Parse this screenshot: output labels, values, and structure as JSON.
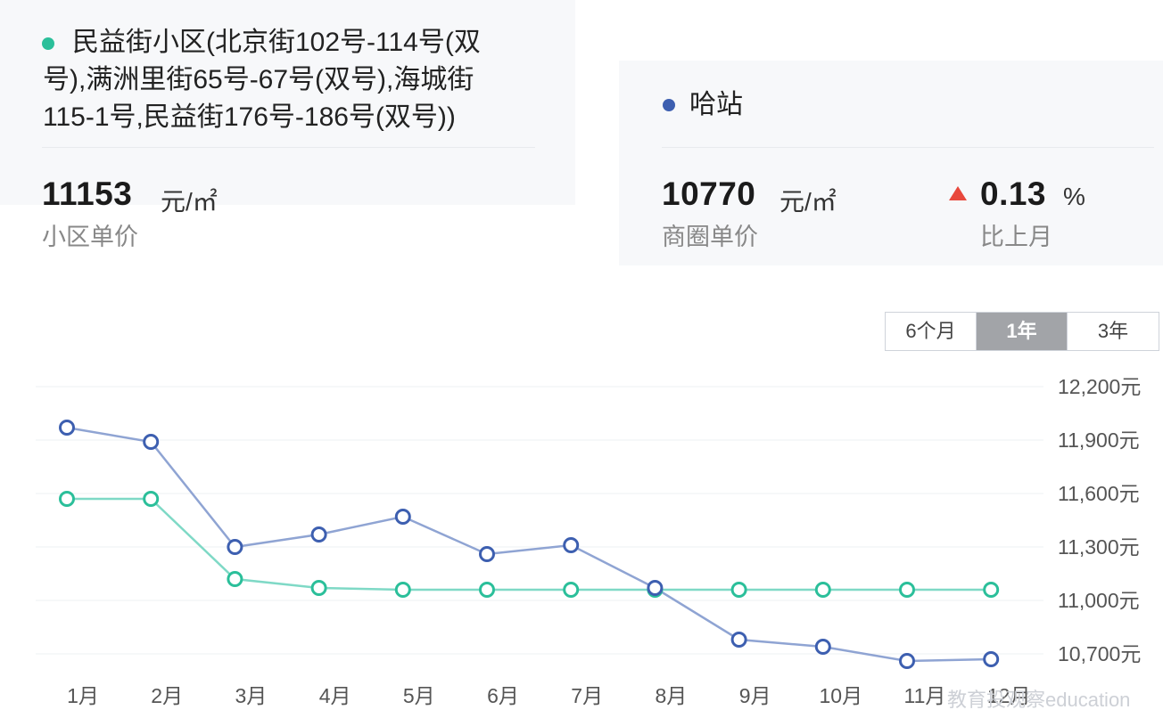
{
  "community": {
    "name": "民益街小区(北京街102号-114号(双号),满洲里街65号-67号(双号),海城街115-1号,民益街176号-186号(双号))",
    "name_lines": [
      "民益街小区(北京街102号-114号(双",
      "号),满洲里街65号-67号(双号),海城街",
      "115-1号,民益街176号-186号(双号))"
    ],
    "price": "11153",
    "unit": "元/㎡",
    "label": "小区单价",
    "color": "#2bbf9a"
  },
  "district": {
    "name": "哈站",
    "price": "10770",
    "unit": "元/㎡",
    "label": "商圈单价",
    "change": "0.13",
    "change_unit": "%",
    "change_label": "比上月",
    "color": "#3d5fb0"
  },
  "range_tabs": [
    {
      "label": "6个月",
      "active": false
    },
    {
      "label": "1年",
      "active": true
    },
    {
      "label": "3年",
      "active": false
    }
  ],
  "watermark": "教育投观察education",
  "chart_data": {
    "type": "line",
    "categories": [
      "1月",
      "2月",
      "3月",
      "4月",
      "5月",
      "6月",
      "7月",
      "8月",
      "9月",
      "10月",
      "11月",
      "12月"
    ],
    "yticks": [
      "12,200元",
      "11,900元",
      "11,600元",
      "11,300元",
      "11,000元",
      "10,700元"
    ],
    "ytick_values": [
      12200,
      11900,
      11600,
      11300,
      11000,
      10700
    ],
    "ylim": [
      10700,
      12200
    ],
    "grid": true,
    "series": [
      {
        "name": "哈站",
        "color": "#3d5fb0",
        "line_color": "#8fa4d3",
        "values": [
          11970,
          11890,
          11300,
          11370,
          11470,
          11260,
          11310,
          11070,
          10780,
          10740,
          10660,
          10670
        ]
      },
      {
        "name": "民益街小区",
        "color": "#2bbf9a",
        "line_color": "#7fd9c6",
        "values": [
          11570,
          11570,
          11120,
          11070,
          11060,
          11060,
          11060,
          11060,
          11060,
          11060,
          11060,
          11060
        ]
      }
    ]
  }
}
